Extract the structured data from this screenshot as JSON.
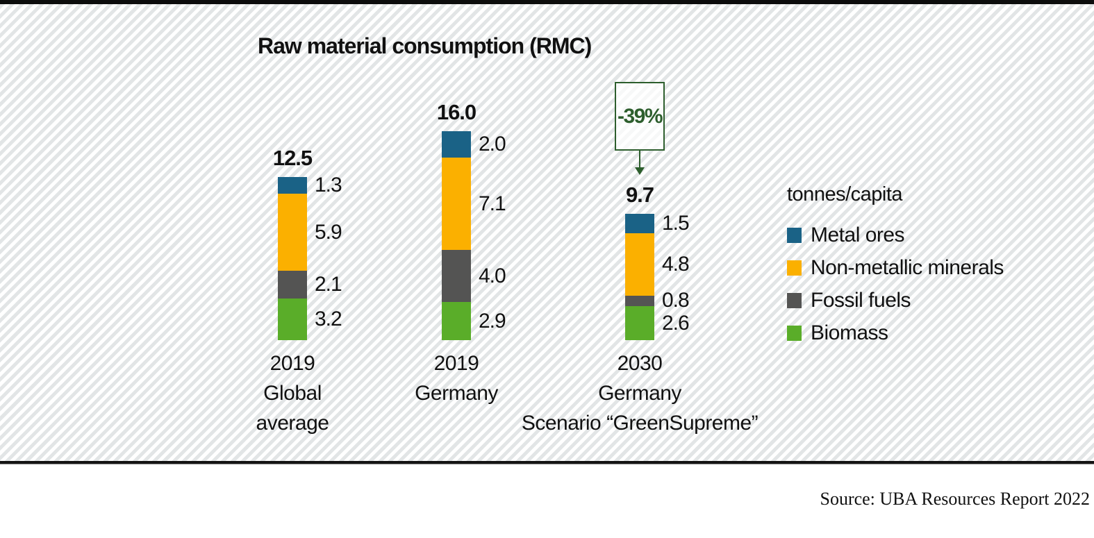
{
  "chart_data": {
    "type": "bar",
    "stacked": true,
    "title": "Raw material consumption (RMC)",
    "unit_label": "tonnes/capita",
    "legend_position": "right",
    "categories": [
      [
        "2019",
        "Global",
        "average"
      ],
      [
        "2019",
        "Germany"
      ],
      [
        "2030",
        "Germany",
        "Scenario “GreenSupreme”"
      ]
    ],
    "series": [
      {
        "name": "Metal ores",
        "color": "#1a6286",
        "values": [
          1.3,
          2.0,
          1.5
        ]
      },
      {
        "name": "Non-metallic minerals",
        "color": "#fbb000",
        "values": [
          5.9,
          7.1,
          4.8
        ]
      },
      {
        "name": "Fossil fuels",
        "color": "#545453",
        "values": [
          2.1,
          4.0,
          0.8
        ]
      },
      {
        "name": "Biomass",
        "color": "#5aad29",
        "values": [
          3.2,
          2.9,
          2.6
        ]
      }
    ],
    "totals": [
      12.5,
      16.0,
      9.7
    ],
    "annotation": {
      "text": "-39%",
      "category_index": 2,
      "color": "#2d5e2d"
    }
  },
  "source_label": "Source: UBA Resources Report 2022"
}
